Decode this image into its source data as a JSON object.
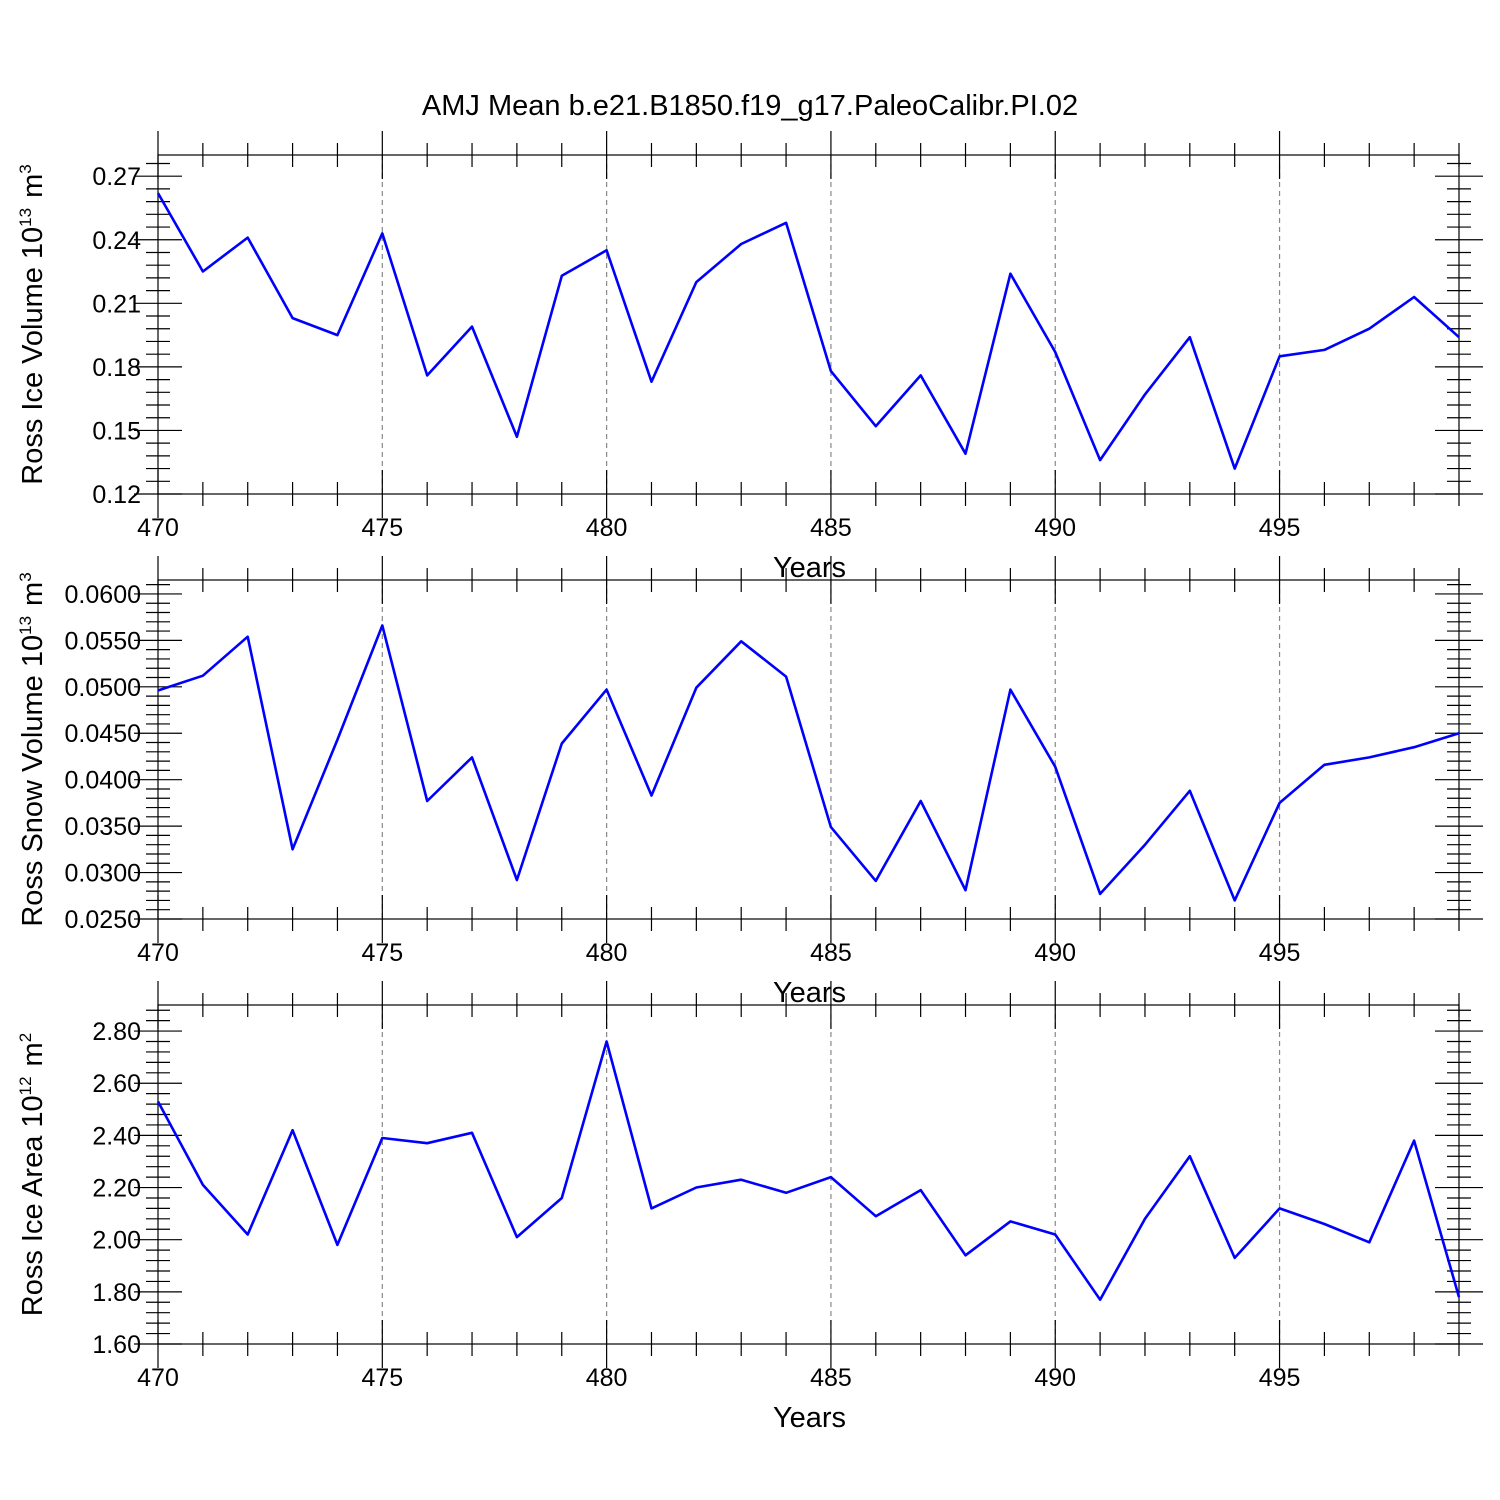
{
  "title": "AMJ Mean b.e21.B1850.f19_g17.PaleoCalibr.PI.02",
  "colors": {
    "series": "#0000ff",
    "axis": "#000000",
    "grid": "#888888",
    "background": "#ffffff"
  },
  "chart_data": [
    {
      "type": "line",
      "xlabel": "Years",
      "ylabel": "Ross Ice Volume 10",
      "ylabel_sup": "13",
      "ylabel_unit": "m",
      "ylabel_unit_sup": "3",
      "xlim": [
        470,
        499
      ],
      "ylim": [
        0.12,
        0.28
      ],
      "xticks": [
        "470",
        "475",
        "480",
        "485",
        "490",
        "495"
      ],
      "yticks": [
        "0.12",
        "0.15",
        "0.18",
        "0.21",
        "0.24",
        "0.27"
      ],
      "grid": "vertical dashed at major x ticks",
      "x": [
        470,
        471,
        472,
        473,
        474,
        475,
        476,
        477,
        478,
        479,
        480,
        481,
        482,
        483,
        484,
        485,
        486,
        487,
        488,
        489,
        490,
        491,
        492,
        493,
        494,
        495,
        496,
        497,
        498,
        499
      ],
      "values": [
        0.262,
        0.225,
        0.241,
        0.203,
        0.195,
        0.243,
        0.176,
        0.199,
        0.147,
        0.223,
        0.235,
        0.173,
        0.22,
        0.238,
        0.248,
        0.178,
        0.152,
        0.176,
        0.139,
        0.224,
        0.187,
        0.136,
        0.167,
        0.194,
        0.132,
        0.185,
        0.188,
        0.198,
        0.213,
        0.194
      ]
    },
    {
      "type": "line",
      "xlabel": "Years",
      "ylabel": "Ross Snow Volume 10",
      "ylabel_sup": "13",
      "ylabel_unit": "m",
      "ylabel_unit_sup": "3",
      "xlim": [
        470,
        499
      ],
      "ylim": [
        0.025,
        0.0615
      ],
      "xticks": [
        "470",
        "475",
        "480",
        "485",
        "490",
        "495"
      ],
      "yticks": [
        "0.0250",
        "0.0300",
        "0.0350",
        "0.0400",
        "0.0450",
        "0.0500",
        "0.0550",
        "0.0600"
      ],
      "grid": "vertical dashed at major x ticks",
      "x": [
        470,
        471,
        472,
        473,
        474,
        475,
        476,
        477,
        478,
        479,
        480,
        481,
        482,
        483,
        484,
        485,
        486,
        487,
        488,
        489,
        490,
        491,
        492,
        493,
        494,
        495,
        496,
        497,
        498,
        499
      ],
      "values": [
        0.0496,
        0.0512,
        0.0554,
        0.0325,
        0.0443,
        0.0566,
        0.0377,
        0.0424,
        0.0292,
        0.0439,
        0.0497,
        0.0383,
        0.0499,
        0.0549,
        0.0511,
        0.0349,
        0.0291,
        0.0377,
        0.0281,
        0.0497,
        0.0414,
        0.0277,
        0.033,
        0.0388,
        0.027,
        0.0375,
        0.0416,
        0.0424,
        0.0435,
        0.045
      ]
    },
    {
      "type": "line",
      "xlabel": "Years",
      "ylabel": "Ross Ice Area 10",
      "ylabel_sup": "12",
      "ylabel_unit": "m",
      "ylabel_unit_sup": "2",
      "xlim": [
        470,
        499
      ],
      "ylim": [
        1.6,
        2.9
      ],
      "xticks": [
        "470",
        "475",
        "480",
        "485",
        "490",
        "495"
      ],
      "yticks": [
        "1.60",
        "1.80",
        "2.00",
        "2.20",
        "2.40",
        "2.60",
        "2.80"
      ],
      "grid": "vertical dashed at major x ticks",
      "x": [
        470,
        471,
        472,
        473,
        474,
        475,
        476,
        477,
        478,
        479,
        480,
        481,
        482,
        483,
        484,
        485,
        486,
        487,
        488,
        489,
        490,
        491,
        492,
        493,
        494,
        495,
        496,
        497,
        498,
        499
      ],
      "values": [
        2.53,
        2.21,
        2.02,
        2.42,
        1.98,
        2.39,
        2.37,
        2.41,
        2.01,
        2.16,
        2.76,
        2.12,
        2.2,
        2.23,
        2.18,
        2.24,
        2.09,
        2.19,
        1.94,
        2.07,
        2.02,
        1.77,
        2.08,
        2.32,
        1.93,
        2.12,
        2.06,
        1.99,
        2.38,
        1.78
      ]
    }
  ]
}
